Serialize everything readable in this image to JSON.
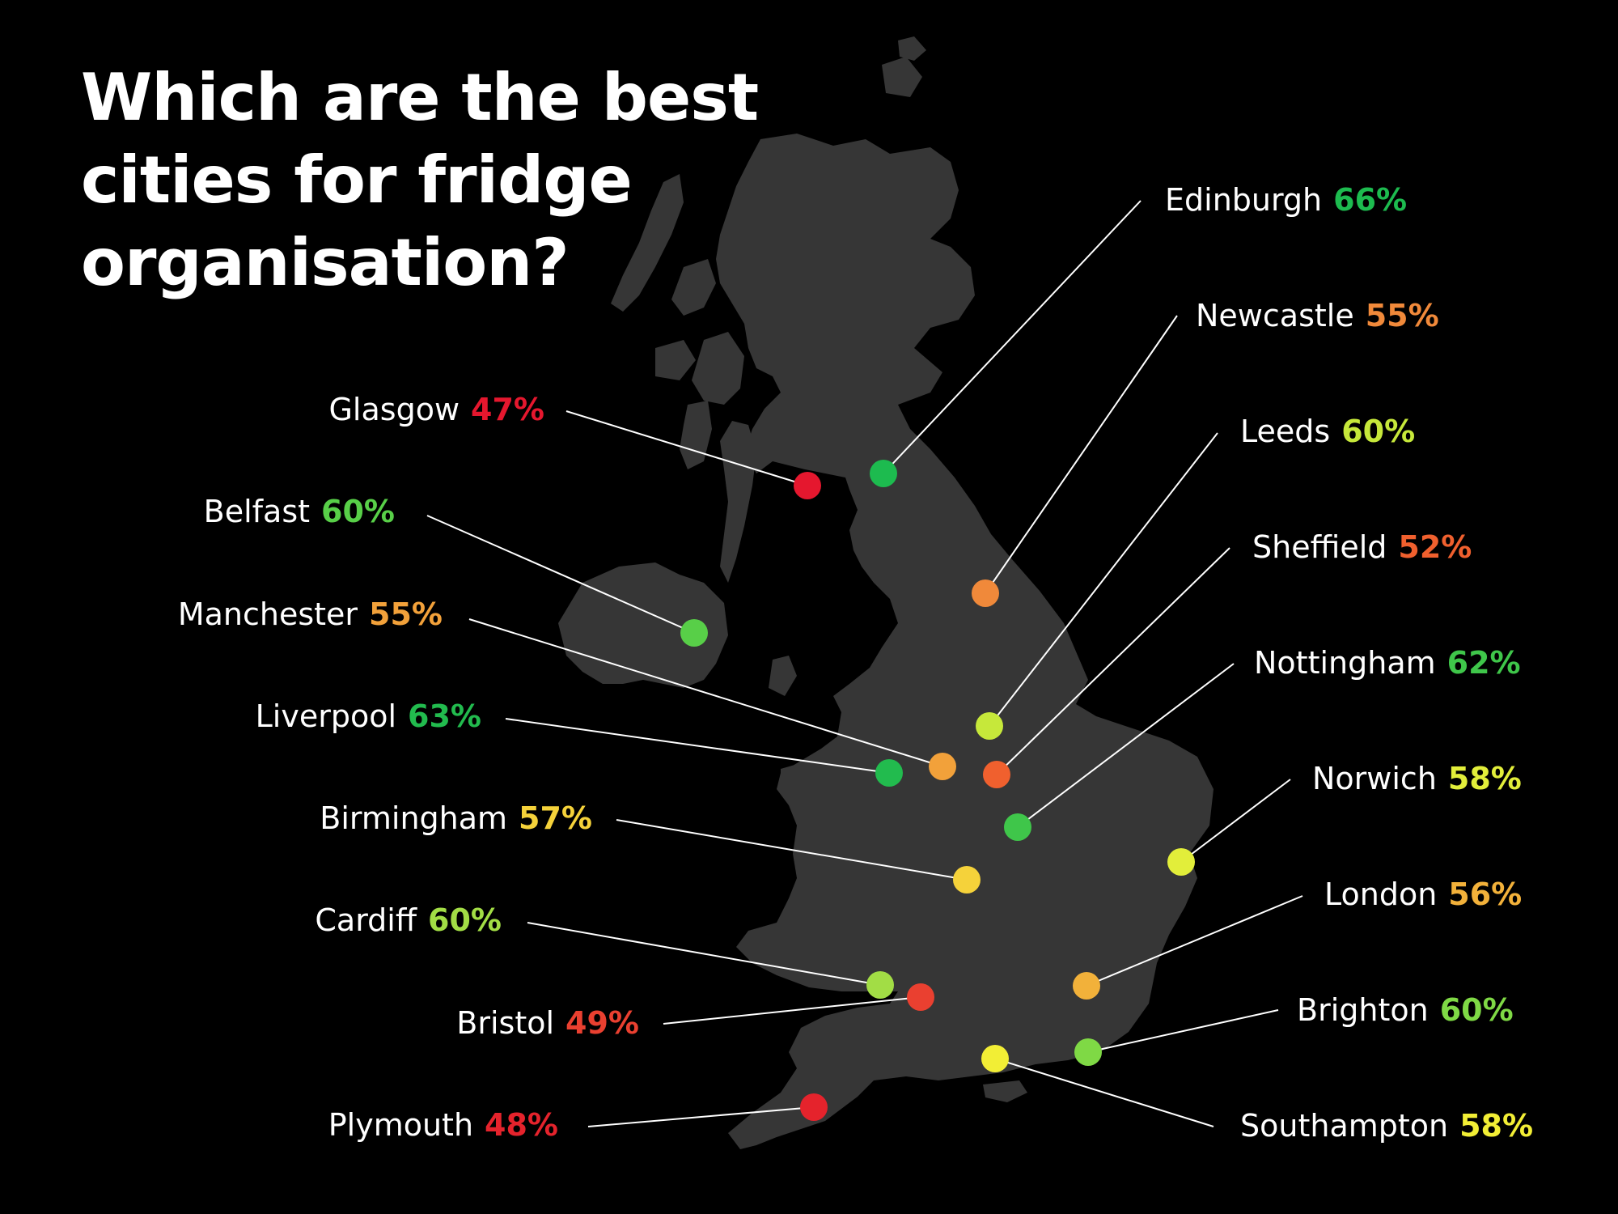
{
  "title_lines": [
    "Which are the best",
    "cities for fridge",
    "organisation?"
  ],
  "colors": {
    "background": "#000000",
    "land": "#363636",
    "text": "#ffffff"
  },
  "cities": [
    {
      "name": "Edinburgh",
      "value": "66%",
      "color": "#1dbb4f"
    },
    {
      "name": "Newcastle",
      "value": "55%",
      "color": "#f0893a"
    },
    {
      "name": "Leeds",
      "value": "60%",
      "color": "#c6e83a"
    },
    {
      "name": "Sheffield",
      "value": "52%",
      "color": "#f0602e"
    },
    {
      "name": "Nottingham",
      "value": "62%",
      "color": "#3fc64a"
    },
    {
      "name": "Norwich",
      "value": "58%",
      "color": "#e2ee3a"
    },
    {
      "name": "London",
      "value": "56%",
      "color": "#f2b13a"
    },
    {
      "name": "Brighton",
      "value": "60%",
      "color": "#7fd945"
    },
    {
      "name": "Southampton",
      "value": "58%",
      "color": "#f2ee35"
    },
    {
      "name": "Glasgow",
      "value": "47%",
      "color": "#e5172e"
    },
    {
      "name": "Belfast",
      "value": "60%",
      "color": "#58cf48"
    },
    {
      "name": "Manchester",
      "value": "55%",
      "color": "#f2a13a"
    },
    {
      "name": "Liverpool",
      "value": "63%",
      "color": "#22bb4e"
    },
    {
      "name": "Birmingham",
      "value": "57%",
      "color": "#f5d23a"
    },
    {
      "name": "Cardiff",
      "value": "60%",
      "color": "#a2dd45"
    },
    {
      "name": "Bristol",
      "value": "49%",
      "color": "#ea4030"
    },
    {
      "name": "Plymouth",
      "value": "48%",
      "color": "#e5232c"
    }
  ]
}
